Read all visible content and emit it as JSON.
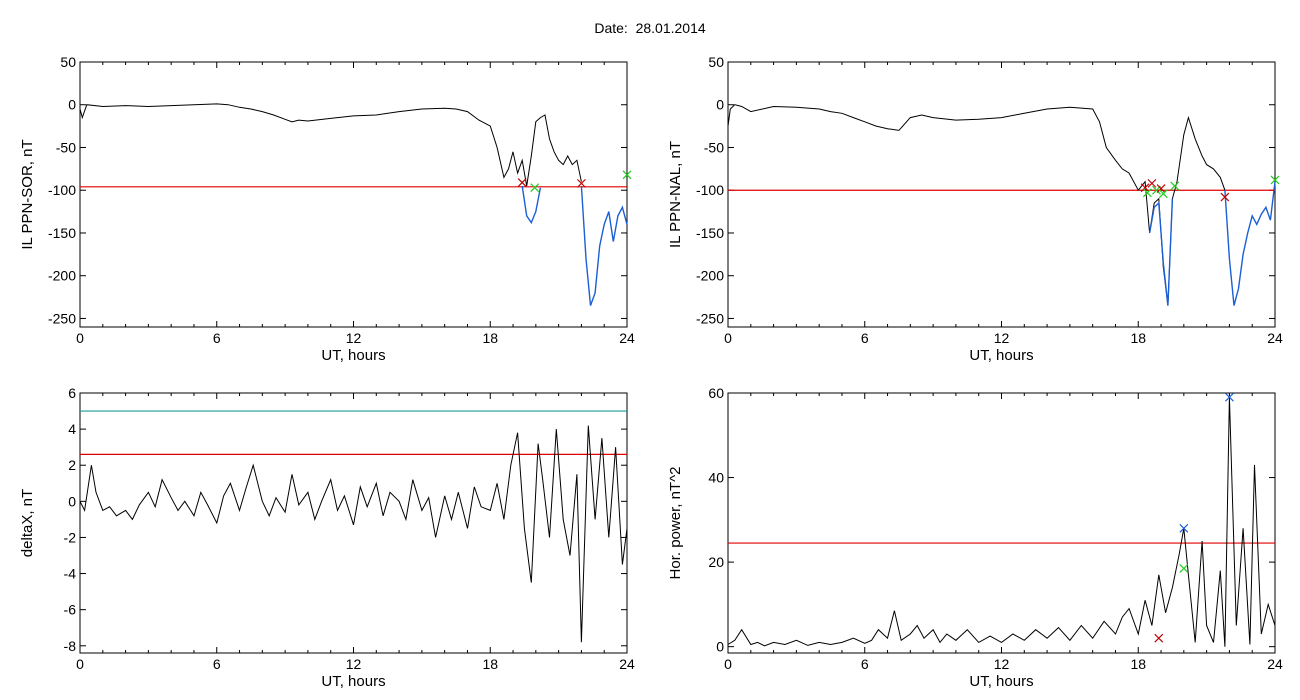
{
  "title": "Date:  28.01.2014",
  "chart_data": [
    {
      "type": "line",
      "xlabel": "UT, hours",
      "ylabel": "IL PPN-SOR, nT",
      "xlim": [
        0,
        24
      ],
      "ylim": [
        -260,
        50
      ],
      "xticks": [
        0,
        6,
        12,
        18,
        24
      ],
      "yticks": [
        50,
        0,
        -50,
        -100,
        -150,
        -200,
        -250
      ],
      "threshold": -96,
      "threshold_color": "#e00000",
      "line_color": "#000000",
      "highlight_color": "#1a5fd6",
      "series": [
        {
          "x": [
            0,
            0.1,
            0.3,
            1,
            2,
            3,
            4,
            5,
            6,
            6.5,
            7,
            7.5,
            8,
            8.5,
            9,
            9.3,
            9.6,
            10,
            11,
            12,
            13,
            14,
            15,
            16,
            16.5,
            17,
            17.5,
            18,
            18.3,
            18.6,
            18.8,
            19,
            19.2,
            19.4,
            19.6,
            19.8,
            20.0,
            20.2,
            20.4,
            20.6,
            20.8,
            21.0,
            21.2,
            21.4,
            21.6,
            21.8,
            22.0
          ],
          "y": [
            -5,
            -15,
            0,
            -2,
            -1,
            -2,
            -1,
            0,
            1,
            0,
            -3,
            -5,
            -8,
            -12,
            -17,
            -20,
            -18,
            -19,
            -16,
            -13,
            -12,
            -8,
            -5,
            -4,
            -5,
            -8,
            -18,
            -25,
            -50,
            -85,
            -75,
            -55,
            -80,
            -65,
            -95,
            -60,
            -20,
            -15,
            -12,
            -40,
            -55,
            -65,
            -70,
            -60,
            -70,
            -65,
            -90
          ]
        },
        {
          "x": [
            19.4,
            19.6,
            19.8,
            20.0,
            20.2
          ],
          "y": [
            -95,
            -130,
            -138,
            -125,
            -97
          ],
          "highlight": true
        },
        {
          "x": [
            22.0,
            22.2,
            22.4,
            22.6,
            22.8,
            23.0,
            23.2,
            23.4,
            23.6,
            23.8,
            24.0
          ],
          "y": [
            -95,
            -180,
            -235,
            -220,
            -165,
            -140,
            -125,
            -160,
            -130,
            -120,
            -140
          ],
          "highlight": true
        }
      ],
      "markers": [
        {
          "x": 19.4,
          "y": -91,
          "color": "#c00000"
        },
        {
          "x": 19.95,
          "y": -97,
          "color": "#22cc22"
        },
        {
          "x": 22.0,
          "y": -92,
          "color": "#c00000"
        },
        {
          "x": 24.0,
          "y": -82,
          "color": "#22cc22"
        }
      ]
    },
    {
      "type": "line",
      "xlabel": "UT, hours",
      "ylabel": "IL PPN-NAL, nT",
      "xlim": [
        0,
        24
      ],
      "ylim": [
        -260,
        50
      ],
      "xticks": [
        0,
        6,
        12,
        18,
        24
      ],
      "yticks": [
        50,
        0,
        -50,
        -100,
        -150,
        -200,
        -250
      ],
      "threshold": -100,
      "threshold_color": "#e00000",
      "line_color": "#000000",
      "highlight_color": "#1a5fd6",
      "series": [
        {
          "x": [
            0,
            0.1,
            0.3,
            0.6,
            1,
            2,
            3,
            4,
            4.5,
            5,
            5.5,
            6,
            6.5,
            7,
            7.5,
            8,
            8.5,
            9,
            10,
            11,
            12,
            13,
            14,
            15,
            16,
            16.3,
            16.6,
            17,
            17.3,
            17.6,
            18.0
          ],
          "y": [
            -25,
            -5,
            0,
            -2,
            -8,
            -2,
            -3,
            -5,
            -8,
            -10,
            -15,
            -20,
            -25,
            -28,
            -30,
            -15,
            -12,
            -15,
            -18,
            -17,
            -15,
            -10,
            -5,
            -3,
            -5,
            -20,
            -50,
            -65,
            -75,
            -80,
            -100
          ]
        },
        {
          "x": [
            18.0,
            18.3,
            18.5,
            18.7,
            18.9,
            19.1,
            19.3,
            19.5,
            19.7,
            20.0,
            20.2,
            20.5,
            20.8,
            21.0,
            21.3,
            21.6,
            21.8
          ],
          "y": [
            -100,
            -90,
            -150,
            -115,
            -110,
            -190,
            -235,
            -110,
            -90,
            -35,
            -15,
            -40,
            -60,
            -70,
            -75,
            -85,
            -100
          ]
        },
        {
          "x": [
            21.8,
            22.0,
            22.2,
            22.4,
            22.6,
            22.8,
            23.0,
            23.2,
            23.4,
            23.6,
            23.8,
            24.0
          ],
          "y": [
            -100,
            -180,
            -235,
            -215,
            -175,
            -150,
            -130,
            -140,
            -128,
            -120,
            -135,
            -90
          ],
          "highlight": true
        },
        {
          "x": [
            18.5,
            18.7,
            18.9,
            19.1,
            19.3,
            19.5
          ],
          "y": [
            -150,
            -120,
            -115,
            -185,
            -235,
            -110
          ],
          "highlight": true
        }
      ],
      "markers": [
        {
          "x": 18.3,
          "y": -97,
          "color": "#c00000"
        },
        {
          "x": 18.4,
          "y": -103,
          "color": "#22cc22"
        },
        {
          "x": 18.6,
          "y": -92,
          "color": "#c00000"
        },
        {
          "x": 18.8,
          "y": -100,
          "color": "#22cc22"
        },
        {
          "x": 19.0,
          "y": -98,
          "color": "#c00000"
        },
        {
          "x": 19.1,
          "y": -104,
          "color": "#22cc22"
        },
        {
          "x": 19.6,
          "y": -95,
          "color": "#22cc22"
        },
        {
          "x": 21.8,
          "y": -108,
          "color": "#c00000"
        },
        {
          "x": 24.0,
          "y": -88,
          "color": "#22cc22"
        }
      ]
    },
    {
      "type": "line",
      "xlabel": "UT, hours",
      "ylabel": "deltaX, nT",
      "xlim": [
        0,
        24
      ],
      "ylim": [
        -8.4,
        6.0
      ],
      "xticks": [
        0,
        6,
        12,
        18,
        24
      ],
      "yticks": [
        6,
        4,
        2,
        0,
        -2,
        -4,
        -6,
        -8
      ],
      "threshold": 2.6,
      "threshold_color": "#e00000",
      "threshold2": 5.0,
      "threshold2_color": "#1a9a9a",
      "line_color": "#000000",
      "series": [
        {
          "x": [
            0,
            0.2,
            0.5,
            0.7,
            1.0,
            1.3,
            1.6,
            2.0,
            2.3,
            2.6,
            3.0,
            3.3,
            3.6,
            4.0,
            4.3,
            4.6,
            5.0,
            5.3,
            5.6,
            6.0,
            6.3,
            6.6,
            7.0,
            7.3,
            7.6,
            8.0,
            8.3,
            8.6,
            9.0,
            9.3,
            9.6,
            10.0,
            10.3,
            10.6,
            11.0,
            11.3,
            11.6,
            12.0,
            12.3,
            12.6,
            13.0,
            13.3,
            13.6,
            14.0,
            14.3,
            14.6,
            15.0,
            15.3,
            15.6,
            16.0,
            16.3,
            16.6,
            17.0,
            17.3,
            17.6,
            18.0,
            18.3,
            18.6,
            18.9,
            19.2,
            19.5,
            19.8,
            20.1,
            20.3,
            20.6,
            20.9,
            21.2,
            21.5,
            21.8,
            22.0,
            22.3,
            22.6,
            22.9,
            23.2,
            23.5,
            23.8,
            24.0
          ],
          "y": [
            0,
            -0.5,
            2.0,
            0.5,
            -0.5,
            -0.3,
            -0.8,
            -0.5,
            -1.0,
            -0.2,
            0.5,
            -0.3,
            1.2,
            0.2,
            -0.5,
            0.0,
            -0.8,
            0.5,
            -0.2,
            -1.2,
            0.3,
            1.0,
            -0.5,
            0.8,
            2.0,
            0.0,
            -0.8,
            0.2,
            -0.6,
            1.5,
            -0.2,
            0.5,
            -1.0,
            0.0,
            1.2,
            -0.5,
            0.3,
            -1.3,
            0.8,
            -0.3,
            1.0,
            -0.8,
            0.5,
            0.0,
            -1.0,
            1.2,
            -0.5,
            0.2,
            -2.0,
            0.3,
            -1.0,
            0.5,
            -1.5,
            0.8,
            -0.3,
            -0.5,
            1.0,
            -1.0,
            2.0,
            3.8,
            -1.5,
            -4.5,
            3.2,
            1.2,
            -2.0,
            4.0,
            -1.0,
            -3.0,
            1.5,
            -7.8,
            4.2,
            -1.0,
            3.5,
            -2.0,
            3.0,
            -3.5,
            -1.5
          ]
        }
      ],
      "markers": []
    },
    {
      "type": "line",
      "xlabel": "UT, hours",
      "ylabel": "Hor. power, nT^2",
      "xlim": [
        0,
        24
      ],
      "ylim": [
        -1.5,
        60
      ],
      "xticks": [
        0,
        6,
        12,
        18,
        24
      ],
      "yticks": [
        60,
        40,
        20,
        0
      ],
      "threshold": 24.5,
      "threshold_color": "#e00000",
      "line_color": "#000000",
      "series": [
        {
          "x": [
            0,
            0.3,
            0.6,
            1.0,
            1.3,
            1.6,
            2.0,
            2.5,
            3.0,
            3.5,
            4.0,
            4.5,
            5.0,
            5.5,
            6.0,
            6.3,
            6.6,
            7.0,
            7.3,
            7.6,
            8.0,
            8.3,
            8.6,
            9.0,
            9.3,
            9.6,
            10.0,
            10.5,
            11.0,
            11.5,
            12.0,
            12.5,
            13.0,
            13.5,
            14.0,
            14.5,
            15.0,
            15.5,
            16.0,
            16.5,
            17.0,
            17.3,
            17.6,
            18.0,
            18.3,
            18.6,
            18.9,
            19.2,
            19.5,
            19.8,
            20.0,
            20.2,
            20.5,
            20.8,
            21.0,
            21.3,
            21.6,
            21.8,
            22.0,
            22.3,
            22.6,
            22.9,
            23.1,
            23.4,
            23.7,
            24.0
          ],
          "y": [
            0.5,
            1.5,
            4.0,
            0.5,
            1.0,
            0.2,
            1.0,
            0.5,
            1.5,
            0.3,
            1.0,
            0.5,
            1.0,
            2.0,
            0.8,
            1.5,
            4.0,
            2.0,
            8.5,
            1.5,
            3.0,
            5.0,
            2.0,
            4.0,
            1.0,
            3.0,
            1.5,
            4.0,
            1.0,
            2.5,
            1.0,
            3.0,
            1.5,
            4.0,
            2.0,
            4.5,
            1.5,
            5.0,
            2.0,
            6.0,
            3.0,
            7.0,
            9.0,
            3.0,
            11.0,
            5.0,
            17.0,
            8.0,
            14.0,
            22.0,
            28.0,
            17.0,
            1.0,
            25.0,
            5.0,
            1.0,
            18.0,
            0.0,
            59.0,
            5.0,
            28.0,
            0.5,
            43.0,
            3.0,
            10.0,
            5.0
          ]
        }
      ],
      "markers": [
        {
          "x": 18.9,
          "y": 2.0,
          "color": "#c00000"
        },
        {
          "x": 20.0,
          "y": 28.0,
          "color": "#1a5fd6"
        },
        {
          "x": 20.0,
          "y": 18.5,
          "color": "#22cc22"
        },
        {
          "x": 22.0,
          "y": 59.0,
          "color": "#1a5fd6"
        }
      ]
    }
  ]
}
